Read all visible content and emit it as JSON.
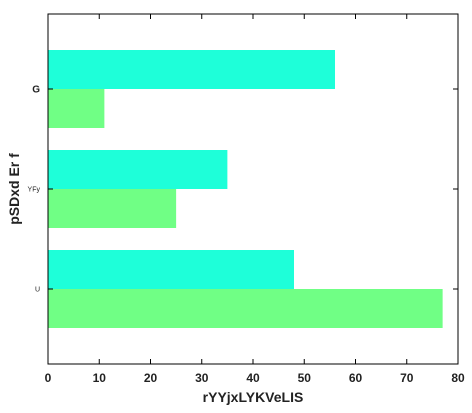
{
  "chart_data": {
    "type": "bar",
    "orientation": "horizontal",
    "categories": [
      "U",
      "YFy",
      "G"
    ],
    "series": [
      {
        "values": [
          77,
          25,
          11
        ],
        "color": "#70ff85"
      },
      {
        "values": [
          48,
          35,
          56
        ],
        "color": "#1effd9"
      }
    ],
    "xlabel": "rYYjxLYKVeLIS",
    "ylabel": "pSDxd Er f",
    "xlim": [
      0,
      80
    ],
    "xticks": [
      0,
      10,
      20,
      30,
      40,
      50,
      60,
      70,
      80
    ],
    "grid": false,
    "legend": "none"
  }
}
